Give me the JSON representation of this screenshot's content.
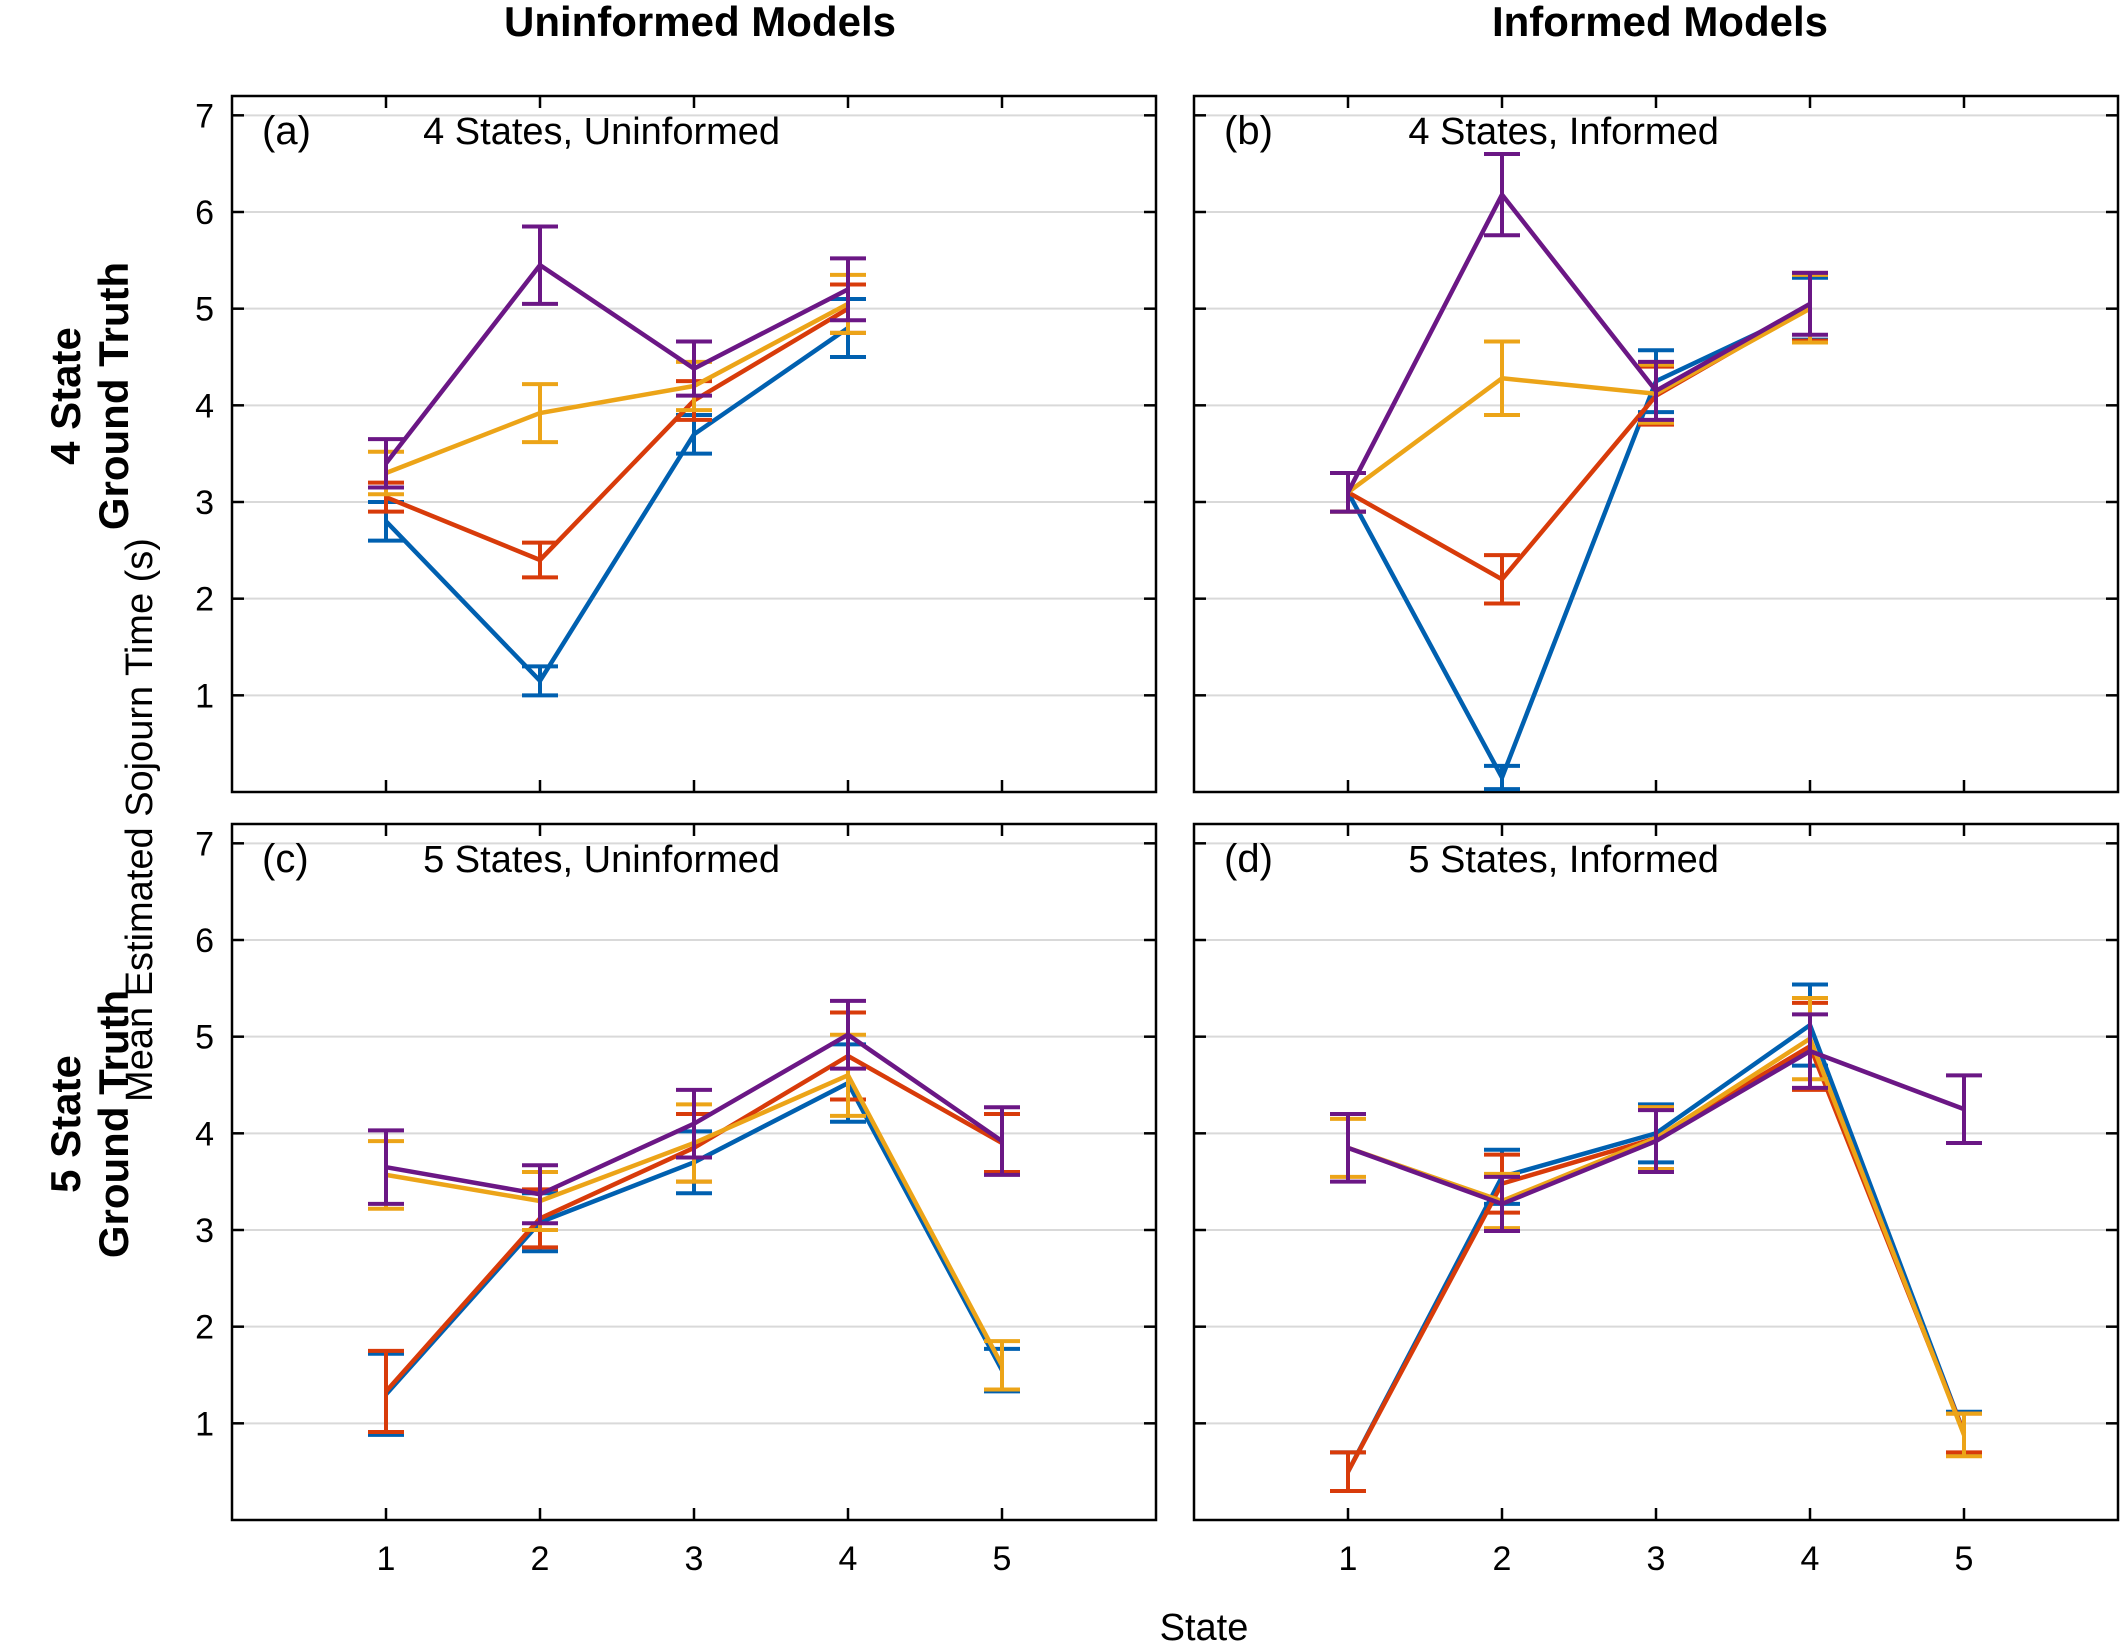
{
  "figure": {
    "column_titles": [
      "Uninformed Models",
      "Informed Models"
    ],
    "row_titles": [
      [
        "4 State",
        "Ground Truth"
      ],
      [
        "5 State",
        "Ground Truth"
      ]
    ],
    "ylabel": "Mean Estimated Sojourn Time (s)",
    "xlabel": "State"
  },
  "colors": {
    "series": [
      "#0060B0",
      "#D83B0A",
      "#ECA418",
      "#6B1785"
    ],
    "grid": "#d9d9d9",
    "axis": "#000000"
  },
  "chart_data": [
    {
      "type": "line",
      "panel": "(a)",
      "title": "4 States, Uninformed",
      "x": [
        1,
        2,
        3,
        4
      ],
      "xticks": [
        1,
        2,
        3,
        4,
        5
      ],
      "xlim": [
        0,
        6
      ],
      "yticks": [
        1,
        2,
        3,
        4,
        5,
        6,
        7
      ],
      "ylim": [
        0,
        7.2
      ],
      "grid": true,
      "series": [
        {
          "values": [
            2.8,
            1.15,
            3.7,
            4.8
          ],
          "err": [
            0.2,
            0.15,
            0.2,
            0.3
          ]
        },
        {
          "values": [
            3.05,
            2.4,
            4.05,
            5.0
          ],
          "err": [
            0.15,
            0.18,
            0.2,
            0.25
          ]
        },
        {
          "values": [
            3.3,
            3.92,
            4.2,
            5.05
          ],
          "err": [
            0.22,
            0.3,
            0.25,
            0.3
          ]
        },
        {
          "values": [
            3.4,
            5.45,
            4.38,
            5.2
          ],
          "err": [
            0.25,
            0.4,
            0.28,
            0.32
          ]
        }
      ]
    },
    {
      "type": "line",
      "panel": "(b)",
      "title": "4 States, Informed",
      "x": [
        1,
        2,
        3,
        4
      ],
      "xticks": [
        1,
        2,
        3,
        4,
        5
      ],
      "xlim": [
        0,
        6
      ],
      "yticks": [
        1,
        2,
        3,
        4,
        5,
        6,
        7
      ],
      "ylim": [
        0,
        7.2
      ],
      "grid": true,
      "series": [
        {
          "values": [
            3.1,
            0.15,
            4.25,
            5.0
          ],
          "err": [
            0.2,
            0.12,
            0.32,
            0.32
          ]
        },
        {
          "values": [
            3.1,
            2.2,
            4.1,
            5.02
          ],
          "err": [
            0.2,
            0.25,
            0.3,
            0.35
          ]
        },
        {
          "values": [
            3.1,
            4.28,
            4.12,
            5.0
          ],
          "err": [
            0.2,
            0.38,
            0.3,
            0.35
          ]
        },
        {
          "values": [
            3.1,
            6.18,
            4.15,
            5.05
          ],
          "err": [
            0.2,
            0.42,
            0.3,
            0.32
          ]
        }
      ]
    },
    {
      "type": "line",
      "panel": "(c)",
      "title": "5 States, Uninformed",
      "x": [
        1,
        2,
        3,
        4,
        5
      ],
      "xticks": [
        1,
        2,
        3,
        4,
        5
      ],
      "xlim": [
        0,
        6
      ],
      "yticks": [
        1,
        2,
        3,
        4,
        5,
        6,
        7
      ],
      "ylim": [
        0,
        7.2
      ],
      "grid": true,
      "series": [
        {
          "values": [
            1.3,
            3.08,
            3.7,
            4.52,
            1.55
          ],
          "err": [
            0.42,
            0.3,
            0.32,
            0.4,
            0.22
          ]
        },
        {
          "values": [
            1.33,
            3.12,
            3.85,
            4.8,
            3.9
          ],
          "err": [
            0.42,
            0.3,
            0.35,
            0.45,
            0.3
          ]
        },
        {
          "values": [
            3.57,
            3.3,
            3.9,
            4.6,
            1.6
          ],
          "err": [
            0.35,
            0.3,
            0.4,
            0.42,
            0.25
          ]
        },
        {
          "values": [
            3.65,
            3.37,
            4.1,
            5.02,
            3.92
          ],
          "err": [
            0.38,
            0.3,
            0.35,
            0.35,
            0.35
          ]
        }
      ]
    },
    {
      "type": "line",
      "panel": "(d)",
      "title": "5 States, Informed",
      "x": [
        1,
        2,
        3,
        4,
        5
      ],
      "xticks": [
        1,
        2,
        3,
        4,
        5
      ],
      "xlim": [
        0,
        6
      ],
      "yticks": [
        1,
        2,
        3,
        4,
        5,
        6,
        7
      ],
      "ylim": [
        0,
        7.2
      ],
      "grid": true,
      "series": [
        {
          "values": [
            0.5,
            3.55,
            4.0,
            5.12,
            0.9
          ],
          "err": [
            0.2,
            0.28,
            0.3,
            0.42,
            0.22
          ]
        },
        {
          "values": [
            0.5,
            3.48,
            3.95,
            4.9,
            0.9
          ],
          "err": [
            0.2,
            0.3,
            0.32,
            0.45,
            0.2
          ]
        },
        {
          "values": [
            3.85,
            3.3,
            3.95,
            4.98,
            0.88
          ],
          "err": [
            0.3,
            0.28,
            0.32,
            0.42,
            0.22
          ]
        },
        {
          "values": [
            3.85,
            3.27,
            3.92,
            4.85,
            4.25
          ],
          "err": [
            0.35,
            0.28,
            0.32,
            0.38,
            0.35
          ]
        }
      ]
    }
  ]
}
